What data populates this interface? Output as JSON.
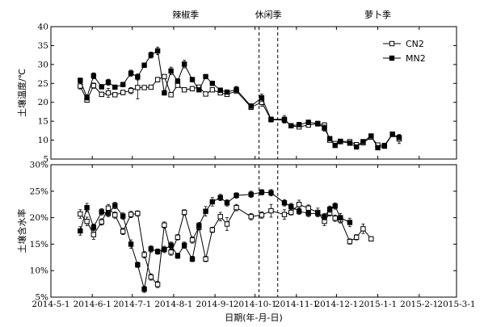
{
  "chart_data": {
    "type": "line",
    "xlabel": "日期(年-月-日)",
    "x_ticks": [
      "2014-5-1",
      "2014-6-1",
      "2014-7-1",
      "2014-8-1",
      "2014-9-1",
      "2014-10-1",
      "2014-11-1",
      "2014-12-1",
      "2015-1-1",
      "2015-2-1",
      "2015-3-1"
    ],
    "x": [
      "2014-5-23",
      "2014-5-28",
      "2014-6-2",
      "2014-6-8",
      "2014-6-13",
      "2014-6-18",
      "2014-6-24",
      "2014-6-30",
      "2014-7-5",
      "2014-7-10",
      "2014-7-15",
      "2014-7-20",
      "2014-7-25",
      "2014-7-30",
      "2014-8-4",
      "2014-8-9",
      "2014-8-15",
      "2014-8-20",
      "2014-8-25",
      "2014-8-30",
      "2014-9-5",
      "2014-9-10",
      "2014-9-17",
      "2014-9-28",
      "2014-10-6",
      "2014-10-13",
      "2014-10-23",
      "2014-10-28",
      "2014-11-3",
      "2014-11-10",
      "2014-11-17",
      "2014-11-22",
      "2014-11-26",
      "2014-11-30",
      "2014-12-4",
      "2014-12-11",
      "2014-12-16",
      "2014-12-21",
      "2014-12-27",
      "2015-1-1",
      "2015-1-6",
      "2015-1-12",
      "2015-1-17",
      "2015-1-28",
      "2015-2-3",
      "2015-2-13",
      "2015-2-23"
    ],
    "seasons": [
      {
        "label": "辣椒季"
      },
      {
        "label": "休闲季"
      },
      {
        "label": "萝卜季"
      }
    ],
    "season_boundaries": [
      "2014-10-4",
      "2014-10-18"
    ],
    "legend_position": "top-right",
    "legend": [
      "CN2",
      "MN2"
    ],
    "panels": [
      {
        "ylabel": "土壤温度/℃",
        "y_ticks": [
          "5",
          "10",
          "15",
          "20",
          "25",
          "30",
          "35",
          "40"
        ],
        "ylim": [
          5,
          40
        ],
        "series": [
          {
            "name": "CN2",
            "marker": "open-square",
            "values": [
              24.3,
              20.6,
              24.4,
              22.1,
              22.5,
              22.0,
              22.6,
              23.1,
              23.9,
              23.9,
              24.0,
              26.0,
              26.8,
              22.0,
              24.5,
              23.3,
              23.6,
              24.0,
              22.2,
              23.3,
              22.5,
              22.1,
              23.0,
              18.7,
              20.0,
              15.4,
              15.3,
              13.8,
              13.5,
              14.0,
              14.3,
              14.0,
              10.0,
              9.1,
              9.7,
              9.6,
              8.8,
              9.3,
              10.8,
              8.7,
              8.6,
              11.6,
              10.3
            ],
            "errors": [
              0.8,
              0.6,
              0.7,
              0.6,
              1.2,
              0.5,
              0.6,
              0.8,
              3.0,
              0.5,
              0.5,
              0.6,
              0.5,
              0.5,
              0.5,
              0.5,
              0.6,
              0.5,
              0.5,
              0.5,
              0.5,
              0.5,
              0.5,
              0.5,
              1.0,
              0.6,
              0.6,
              0.6,
              0.5,
              0.5,
              0.5,
              0.6,
              0.5,
              0.5,
              0.5,
              0.5,
              0.5,
              0.5,
              0.5,
              0.5,
              0.5,
              0.4,
              1.2
            ]
          },
          {
            "name": "MN2",
            "marker": "filled-square",
            "values": [
              25.8,
              21.3,
              27.0,
              24.1,
              25.3,
              24.0,
              24.7,
              27.7,
              26.7,
              29.8,
              32.5,
              33.6,
              22.5,
              28.3,
              25.6,
              30.1,
              26.0,
              23.3,
              26.8,
              25.0,
              23.2,
              22.7,
              23.4,
              19.0,
              21.2,
              15.5,
              15.5,
              13.8,
              14.1,
              14.7,
              14.4,
              13.2,
              10.4,
              8.6,
              9.6,
              9.2,
              8.2,
              9.6,
              11.1,
              8.0,
              8.4,
              11.5,
              10.7
            ],
            "errors": [
              0.6,
              0.7,
              0.8,
              0.6,
              0.8,
              0.5,
              0.6,
              0.8,
              0.8,
              0.6,
              0.8,
              1.0,
              0.6,
              1.0,
              0.6,
              1.0,
              0.6,
              0.5,
              0.5,
              0.6,
              0.6,
              0.5,
              0.8,
              0.6,
              1.0,
              0.6,
              1.0,
              0.6,
              0.6,
              0.6,
              0.6,
              0.8,
              0.5,
              0.5,
              0.5,
              0.6,
              0.5,
              0.5,
              0.5,
              0.5,
              0.5,
              0.4,
              0.6
            ]
          }
        ]
      },
      {
        "ylabel": "土壤含水率",
        "y_ticks": [
          "5%",
          "10%",
          "15%",
          "20%",
          "25%",
          "30%"
        ],
        "ylim": [
          5,
          30
        ],
        "series": [
          {
            "name": "CN2",
            "marker": "open-square",
            "values": [
              20.7,
              19.3,
              16.8,
              19.2,
              21.8,
              20.5,
              17.4,
              20.6,
              20.8,
              13.0,
              8.8,
              7.4,
              18.6,
              13.5,
              16.3,
              21.0,
              15.8,
              18.2,
              12.2,
              17.7,
              20.2,
              18.8,
              21.9,
              20.2,
              20.5,
              21.3,
              20.6,
              21.0,
              22.5,
              21.8,
              21.0,
              19.3,
              20.9,
              19.9,
              19.6,
              15.5,
              16.3,
              17.9,
              16.0
            ],
            "errors": [
              0.8,
              0.8,
              0.9,
              0.6,
              0.7,
              0.6,
              0.6,
              0.6,
              0.5,
              0.6,
              0.6,
              0.6,
              0.6,
              0.6,
              0.5,
              0.5,
              0.6,
              0.5,
              0.5,
              0.5,
              0.8,
              1.2,
              0.6,
              0.6,
              0.6,
              1.2,
              0.9,
              0.5,
              0.8,
              0.6,
              0.8,
              0.8,
              0.6,
              0.6,
              0.6,
              0.5,
              0.5,
              0.9,
              0.4
            ]
          },
          {
            "name": "MN2",
            "marker": "filled-square",
            "values": [
              17.5,
              21.9,
              18.2,
              21.1,
              20.8,
              22.3,
              20.3,
              15.0,
              11.1,
              6.5,
              14.1,
              13.6,
              14.0,
              14.8,
              12.8,
              14.8,
              12.2,
              18.5,
              21.2,
              23.0,
              23.8,
              22.8,
              24.2,
              24.4,
              24.8,
              24.7,
              22.8,
              22.1,
              21.2,
              20.8,
              20.8,
              20.2,
              21.6,
              22.2,
              20.0,
              19.1
            ],
            "errors": [
              0.8,
              0.8,
              0.6,
              0.6,
              0.6,
              0.6,
              0.6,
              0.8,
              0.5,
              0.6,
              0.6,
              0.5,
              0.6,
              0.6,
              0.5,
              0.6,
              0.5,
              0.6,
              0.9,
              0.8,
              0.6,
              0.6,
              0.5,
              0.6,
              0.5,
              0.6,
              0.6,
              0.6,
              0.6,
              0.6,
              0.6,
              0.6,
              0.6,
              0.6,
              0.8,
              0.8
            ]
          }
        ]
      }
    ]
  }
}
